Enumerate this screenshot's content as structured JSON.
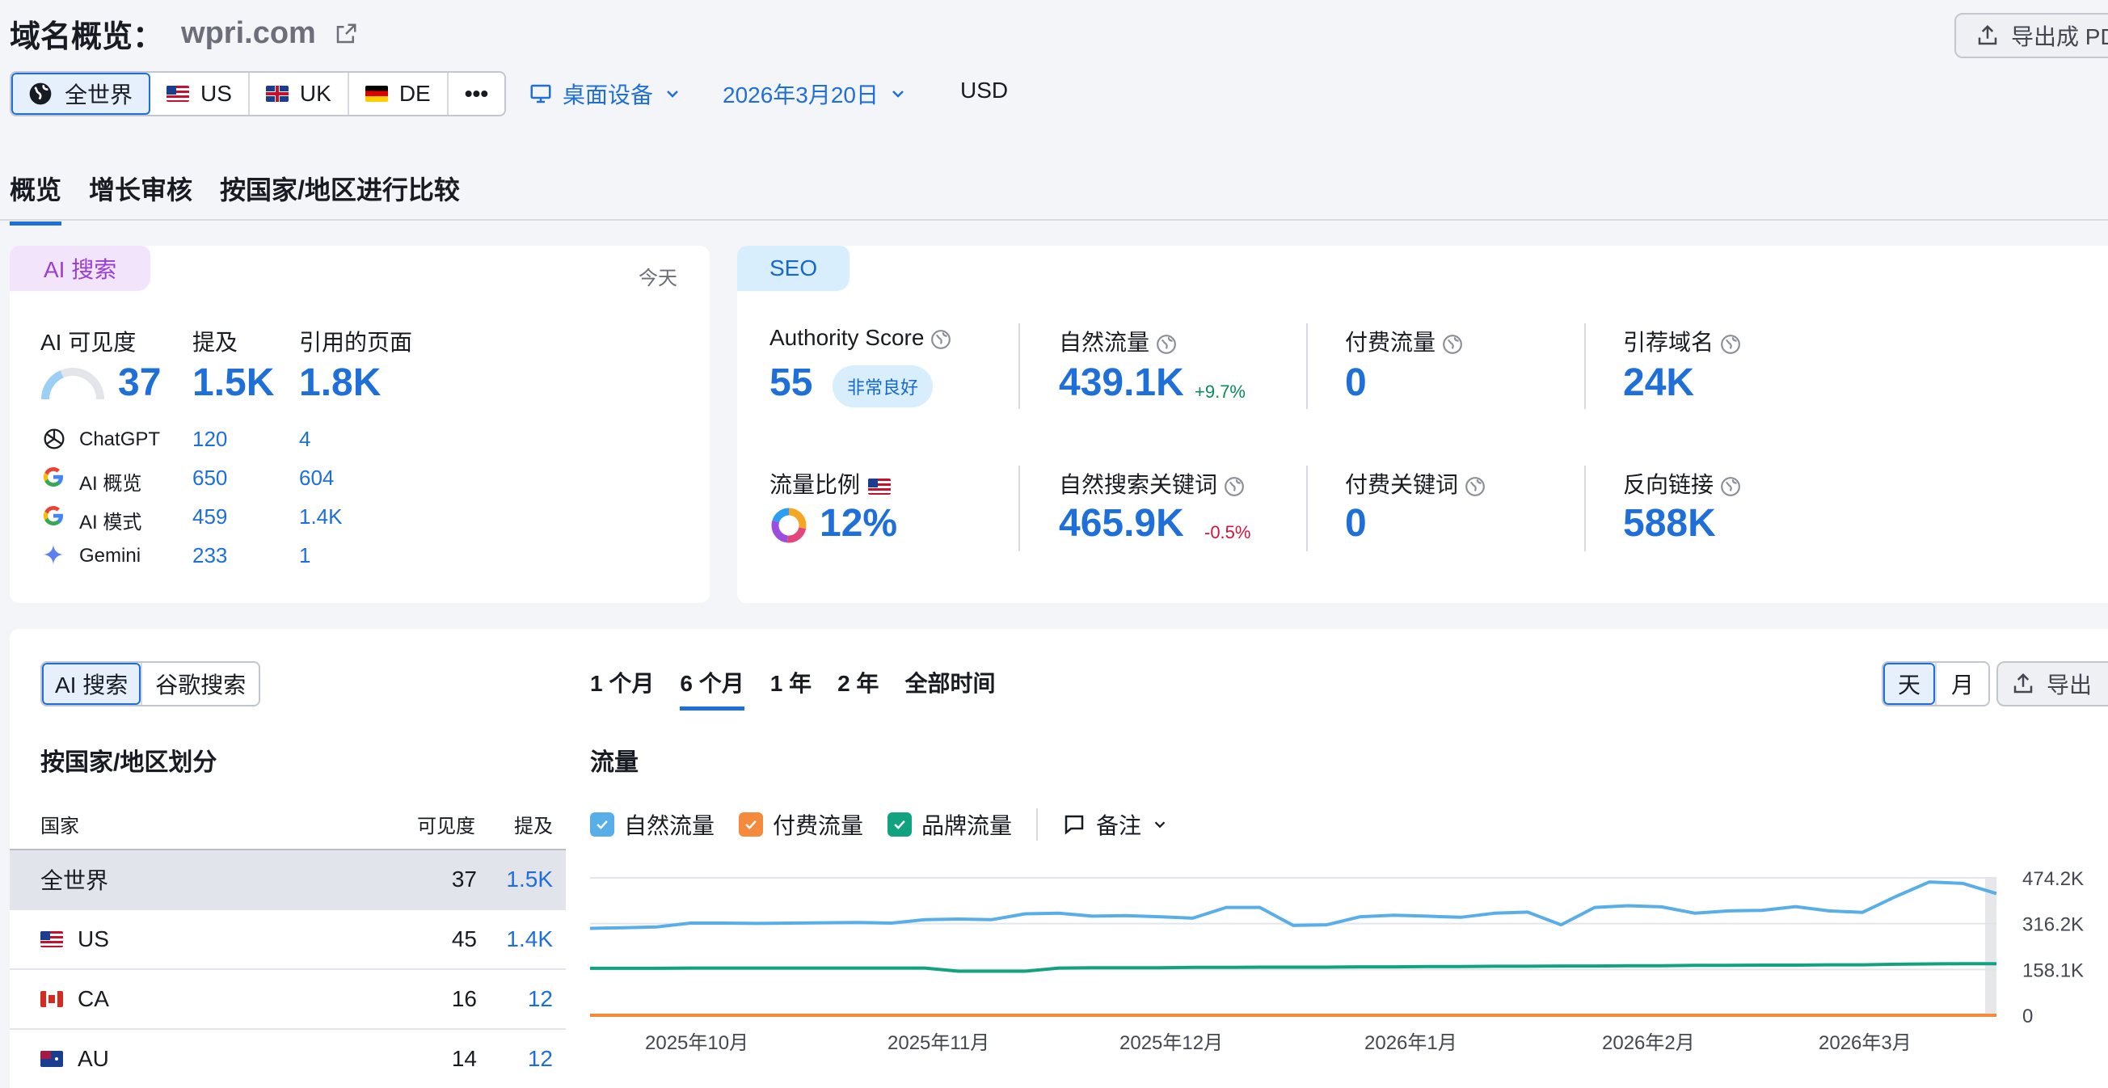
{
  "header": {
    "title": "域名概览：",
    "domain": "wpri.com",
    "export_pdf": "导出成 PD"
  },
  "regions": [
    {
      "label": "全世界",
      "icon": "globe-icon"
    },
    {
      "label": "US",
      "icon": "us-flag-icon"
    },
    {
      "label": "UK",
      "icon": "uk-flag-icon"
    },
    {
      "label": "DE",
      "icon": "de-flag-icon"
    },
    {
      "label": "•••",
      "icon": "more-icon"
    }
  ],
  "filters": {
    "device": "桌面设备",
    "date": "2026年3月20日",
    "currency": "USD"
  },
  "tabs": [
    "概览",
    "增长审核",
    "按国家/地区进行比较"
  ],
  "ai_card": {
    "tag": "AI 搜索",
    "today": "今天",
    "labels": {
      "visibility": "AI 可见度",
      "mentions": "提及",
      "cited_pages": "引用的页面"
    },
    "visibility": "37",
    "visibility_gauge": 0.37,
    "mentions": "1.5K",
    "cited_pages": "1.8K",
    "rows": [
      {
        "name": "ChatGPT",
        "mentions": "120",
        "cited": "4",
        "icon": "chatgpt-icon"
      },
      {
        "name": "AI 概览",
        "mentions": "650",
        "cited": "604",
        "icon": "google-icon"
      },
      {
        "name": "AI 模式",
        "mentions": "459",
        "cited": "1.4K",
        "icon": "google-icon"
      },
      {
        "name": "Gemini",
        "mentions": "233",
        "cited": "1",
        "icon": "gemini-icon"
      }
    ]
  },
  "seo_card": {
    "tag": "SEO",
    "authority_label": "Authority Score",
    "authority_value": "55",
    "authority_badge": "非常良好",
    "organic_label": "自然流量",
    "organic_value": "439.1K",
    "organic_delta": "+9.7%",
    "paid_label": "付费流量",
    "paid_value": "0",
    "ref_domains_label": "引荐域名",
    "ref_domains_value": "24K",
    "traffic_share_label": "流量比例",
    "traffic_share_value": "12%",
    "organic_kw_label": "自然搜索关键词",
    "organic_kw_value": "465.9K",
    "organic_kw_delta": "-0.5%",
    "paid_kw_label": "付费关键词",
    "paid_kw_value": "0",
    "backlinks_label": "反向链接",
    "backlinks_value": "588K"
  },
  "lower": {
    "search_toggle": [
      "AI 搜索",
      "谷歌搜索"
    ],
    "periods": [
      "1 个月",
      "6 个月",
      "1 年",
      "2 年",
      "全部时间"
    ],
    "granularity": [
      "天",
      "月"
    ],
    "export": "导出",
    "country_title": "按国家/地区划分",
    "table_head": {
      "country": "国家",
      "visibility": "可见度",
      "mentions": "提及"
    },
    "table_rows": [
      {
        "name": "全世界",
        "visibility": "37",
        "mentions": "1.5K",
        "flag": "none"
      },
      {
        "name": "US",
        "visibility": "45",
        "mentions": "1.4K",
        "flag": "us-flag-icon"
      },
      {
        "name": "CA",
        "visibility": "16",
        "mentions": "12",
        "flag": "ca-flag-icon"
      },
      {
        "name": "AU",
        "visibility": "14",
        "mentions": "12",
        "flag": "au-flag-icon"
      }
    ],
    "traffic_title": "流量",
    "legend": {
      "organic": "自然流量",
      "paid": "付费流量",
      "brand": "品牌流量",
      "notes": "备注"
    }
  },
  "colors": {
    "accent": "#1e6fd9",
    "organic": "#58aee8",
    "paid": "#f58a3d",
    "brand": "#11a37f"
  },
  "chart_data": {
    "type": "line",
    "x_ticks": [
      "2025年10月",
      "2025年11月",
      "2025年12月",
      "2026年1月",
      "2026年2月",
      "2026年3月"
    ],
    "y_ticks": [
      "474.2K",
      "316.2K",
      "158.1K",
      "0"
    ],
    "ylim": [
      0,
      474200
    ],
    "series": [
      {
        "name": "自然流量",
        "color": "#58aee8",
        "values": [
          300000,
          302000,
          305000,
          318000,
          318000,
          317000,
          318000,
          319000,
          320000,
          318000,
          330000,
          332000,
          330000,
          350000,
          352000,
          342000,
          344000,
          340000,
          335000,
          372000,
          372000,
          310000,
          312000,
          340000,
          345000,
          342000,
          338000,
          352000,
          356000,
          312000,
          372000,
          378000,
          374000,
          352000,
          360000,
          362000,
          375000,
          360000,
          355000,
          410000,
          460000,
          455000,
          420000
        ]
      },
      {
        "name": "付费流量",
        "color": "#f58a3d",
        "values": [
          0,
          0,
          0,
          0,
          0,
          0,
          0,
          0,
          0,
          0,
          0,
          0,
          0,
          0,
          0,
          0,
          0,
          0,
          0,
          0,
          0,
          0,
          0,
          0,
          0,
          0,
          0,
          0,
          0,
          0,
          0,
          0,
          0,
          0,
          0,
          0,
          0,
          0,
          0,
          0,
          0,
          0,
          0
        ]
      },
      {
        "name": "品牌流量",
        "color": "#11a37f",
        "values": [
          162000,
          162000,
          162000,
          163000,
          163000,
          163000,
          163000,
          163000,
          163000,
          163000,
          163000,
          152000,
          152000,
          152000,
          163000,
          164000,
          164000,
          164000,
          165000,
          165000,
          166000,
          166000,
          166000,
          167000,
          167000,
          168000,
          168000,
          169000,
          169000,
          170000,
          170000,
          171000,
          171000,
          172000,
          172000,
          173000,
          173000,
          174000,
          174000,
          176000,
          177000,
          178000,
          178000
        ]
      }
    ]
  }
}
